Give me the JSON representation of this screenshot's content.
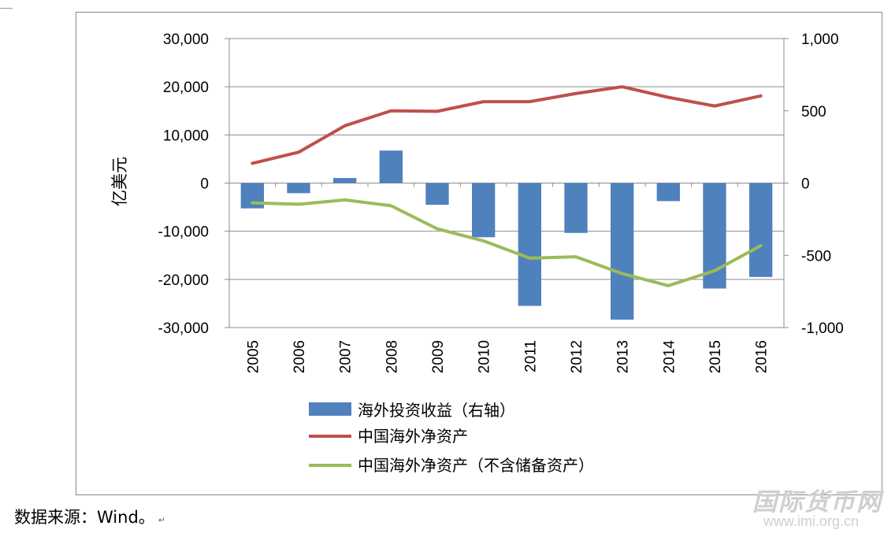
{
  "chart_data": {
    "type": "bar+line",
    "categories": [
      "2005",
      "2006",
      "2007",
      "2008",
      "2009",
      "2010",
      "2011",
      "2012",
      "2013",
      "2014",
      "2015",
      "2016"
    ],
    "ylabel": "亿美元",
    "left_axis": {
      "ylim": [
        -30000,
        30000
      ],
      "ticks": [
        30000,
        20000,
        10000,
        0,
        -10000,
        -20000,
        -30000
      ],
      "tick_labels": [
        "30,000",
        "20,000",
        "10,000",
        "0",
        "-10,000",
        "-20,000",
        "-30,000"
      ]
    },
    "right_axis": {
      "ylim": [
        -1000,
        1000
      ],
      "ticks": [
        1000,
        500,
        0,
        -500,
        -1000
      ],
      "tick_labels": [
        "1,000",
        "500",
        "0",
        "-500",
        "-1,000"
      ]
    },
    "series": [
      {
        "name": "海外投资收益（右轴）",
        "kind": "bar",
        "axis": "right",
        "color": "#4f81bd",
        "values": [
          -175,
          -70,
          35,
          225,
          -150,
          -375,
          -850,
          -345,
          -945,
          -125,
          -730,
          -650
        ]
      },
      {
        "name": "中国海外净资产",
        "kind": "line",
        "axis": "left",
        "color": "#c0504d",
        "values": [
          4100,
          6400,
          11900,
          15000,
          14900,
          16900,
          16900,
          18600,
          20000,
          17800,
          16000,
          18100
        ]
      },
      {
        "name": "中国海外净资产（不含储备资产）",
        "kind": "line",
        "axis": "left",
        "color": "#9bbb59",
        "values": [
          -4100,
          -4400,
          -3500,
          -4700,
          -9500,
          -12000,
          -15600,
          -15300,
          -18800,
          -21300,
          -18200,
          -13000
        ]
      }
    ],
    "grid": true,
    "legend_position": "bottom"
  },
  "source_note": "数据来源：Wind。",
  "return_mark": "↵",
  "watermark": {
    "title": "国际货币网",
    "url": "www.imi.org.cn"
  }
}
